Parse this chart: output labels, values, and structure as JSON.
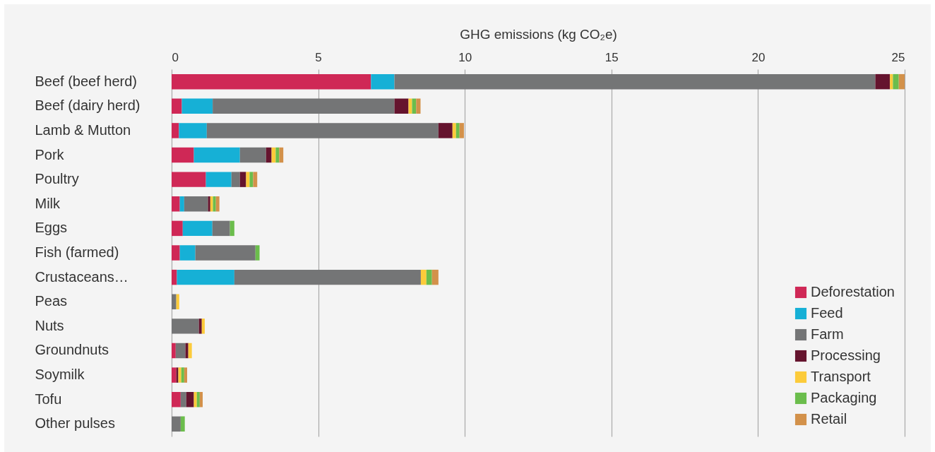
{
  "chart_data": {
    "type": "bar",
    "orientation": "horizontal",
    "stacked": true,
    "xlabel": "GHG emissions (kg CO₂e)",
    "categories": [
      "Beef (beef herd)",
      "Beef (dairy herd)",
      "Lamb & Mutton",
      "Pork",
      "Poultry",
      "Milk",
      "Eggs",
      "Fish (farmed)",
      "Crustaceans…",
      "Peas",
      "Nuts",
      "Groundnuts",
      "Soymilk",
      "Tofu",
      "Other pulses"
    ],
    "series": [
      {
        "name": "Deforestation",
        "color": "#cf2856",
        "values": [
          6.8,
          0.35,
          0.25,
          0.76,
          1.17,
          0.28,
          0.38,
          0.28,
          0.18,
          null,
          null,
          0.14,
          0.16,
          0.31,
          null
        ]
      },
      {
        "name": "Feed",
        "color": "#16b0d6",
        "values": [
          0.8,
          1.05,
          0.95,
          1.57,
          0.87,
          0.15,
          1.01,
          0.53,
          1.96,
          null,
          null,
          null,
          null,
          null,
          null
        ]
      },
      {
        "name": "Farm",
        "color": "#747576",
        "values": [
          16.4,
          6.2,
          7.9,
          0.89,
          0.29,
          0.81,
          0.6,
          2.05,
          6.36,
          0.16,
          0.93,
          0.33,
          null,
          0.19,
          0.31
        ]
      },
      {
        "name": "Processing",
        "color": "#65142e",
        "values": [
          0.5,
          0.48,
          0.48,
          0.19,
          0.21,
          0.08,
          null,
          null,
          null,
          null,
          0.1,
          0.1,
          0.07,
          0.26,
          null
        ]
      },
      {
        "name": "Transport",
        "color": "#fccb3a",
        "values": [
          0.1,
          0.12,
          0.12,
          0.14,
          0.12,
          0.09,
          null,
          null,
          0.19,
          0.1,
          0.1,
          0.12,
          0.1,
          0.1,
          null
        ]
      },
      {
        "name": "Packaging",
        "color": "#6bbd4c",
        "values": [
          0.2,
          0.14,
          0.12,
          0.12,
          0.12,
          0.1,
          0.15,
          0.14,
          0.19,
          null,
          null,
          null,
          0.1,
          0.1,
          0.14
        ]
      },
      {
        "name": "Retail",
        "color": "#d3914a",
        "values": [
          0.2,
          0.15,
          0.15,
          0.14,
          0.14,
          0.12,
          null,
          null,
          0.22,
          null,
          null,
          null,
          0.1,
          0.1,
          null
        ]
      }
    ],
    "xlim": [
      0,
      25
    ],
    "xticks": [
      0,
      5,
      10,
      15,
      20,
      25
    ],
    "grid": "x",
    "legend": "bottom right"
  }
}
